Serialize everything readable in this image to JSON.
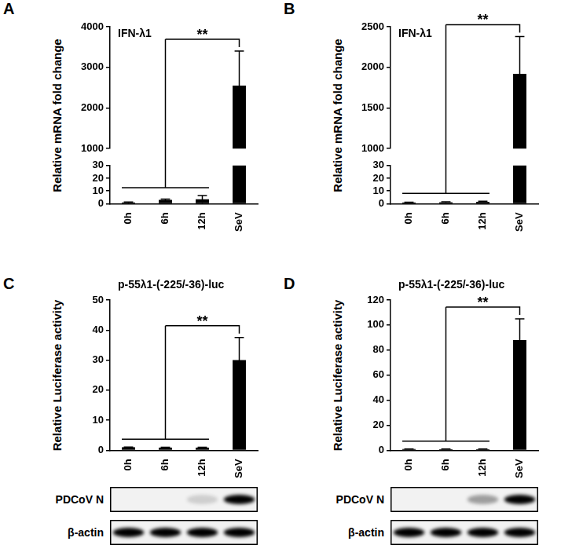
{
  "chart_data": [
    {
      "panel_label": "A",
      "type": "bar",
      "title": "IFN-λ1",
      "y_label": "Relative mRNA fold change",
      "categories": [
        "0h",
        "6h",
        "12h",
        "SeV"
      ],
      "values": [
        1,
        3,
        3.5,
        2550
      ],
      "errors": [
        0.4,
        0.6,
        3,
        850
      ],
      "color": "#000000",
      "grid": false,
      "y_segments": [
        {
          "ylim": [
            0,
            30
          ],
          "yticks": [
            0,
            10,
            20,
            30
          ]
        },
        {
          "ylim": [
            1000,
            4000
          ],
          "yticks": [
            1000,
            2000,
            3000,
            4000
          ]
        }
      ],
      "annotations": [
        {
          "text": "**",
          "group": [
            "0h",
            "6h",
            "12h"
          ],
          "vs": "SeV"
        }
      ]
    },
    {
      "panel_label": "B",
      "type": "bar",
      "title": "IFN-λ1",
      "y_label": "Relative mRNA fold change",
      "categories": [
        "0h",
        "6h",
        "12h",
        "SeV"
      ],
      "values": [
        1,
        1.2,
        1.5,
        1920
      ],
      "errors": [
        0.2,
        0.3,
        0.4,
        460
      ],
      "color": "#000000",
      "grid": false,
      "y_segments": [
        {
          "ylim": [
            0,
            30
          ],
          "yticks": [
            0,
            10,
            20,
            30
          ]
        },
        {
          "ylim": [
            1000,
            2500
          ],
          "yticks": [
            1000,
            1500,
            2000,
            2500
          ]
        }
      ],
      "annotations": [
        {
          "text": "**",
          "group": [
            "0h",
            "6h",
            "12h"
          ],
          "vs": "SeV"
        }
      ]
    },
    {
      "panel_label": "C",
      "type": "bar",
      "title": "p-55λ1-(-225/-36)-luc",
      "y_label": "Relative Luciferase activity",
      "categories": [
        "0h",
        "6h",
        "12h",
        "SeV"
      ],
      "values": [
        1,
        0.9,
        0.9,
        30
      ],
      "errors": [
        0.1,
        0.1,
        0.1,
        7.5
      ],
      "color": "#000000",
      "grid": false,
      "ylim": [
        0,
        50
      ],
      "yticks": [
        0,
        10,
        20,
        30,
        40,
        50
      ],
      "annotations": [
        {
          "text": "**",
          "group": [
            "0h",
            "6h",
            "12h"
          ],
          "vs": "SeV"
        }
      ],
      "blot": {
        "rows": [
          {
            "label": "PDCoV N",
            "bands": [
              0,
              0,
              0.15,
              1
            ]
          },
          {
            "label": "β-actin",
            "bands": [
              1,
              1,
              1,
              1
            ]
          }
        ]
      }
    },
    {
      "panel_label": "D",
      "type": "bar",
      "title": "p-55λ1-(-225/-36)-luc",
      "y_label": "Relative Luciferase activity",
      "categories": [
        "0h",
        "6h",
        "12h",
        "SeV"
      ],
      "values": [
        1,
        0.9,
        0.9,
        88
      ],
      "errors": [
        0.1,
        0.1,
        0.1,
        17
      ],
      "color": "#000000",
      "grid": false,
      "ylim": [
        0,
        120
      ],
      "yticks": [
        0,
        20,
        40,
        60,
        80,
        100,
        120
      ],
      "annotations": [
        {
          "text": "**",
          "group": [
            "0h",
            "6h",
            "12h"
          ],
          "vs": "SeV"
        }
      ],
      "blot": {
        "rows": [
          {
            "label": "PDCoV N",
            "bands": [
              0,
              0,
              0.35,
              1
            ]
          },
          {
            "label": "β-actin",
            "bands": [
              1,
              1,
              1,
              1
            ]
          }
        ]
      }
    }
  ]
}
